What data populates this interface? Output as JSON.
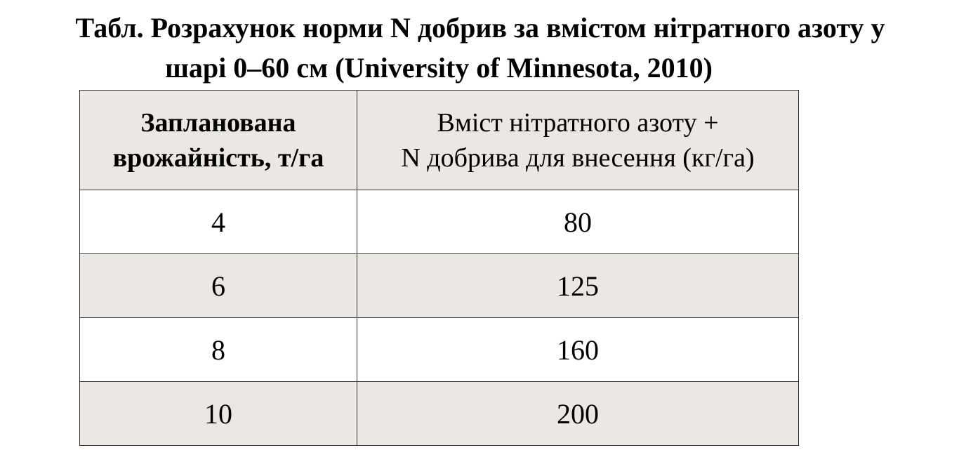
{
  "title_lines": [
    "Табл. Розрахунок норми N добрив за вмістом нітратного азоту у",
    "шарі 0–60 см (University of Minnesota, 2010)"
  ],
  "table": {
    "header": [
      "Запланована\nврожайність, т/га",
      "Вміст нітратного азоту +\nN добрива для внесення (кг/га)"
    ],
    "rows": [
      [
        4,
        80
      ],
      [
        6,
        125
      ],
      [
        8,
        160
      ],
      [
        10,
        200
      ]
    ]
  }
}
